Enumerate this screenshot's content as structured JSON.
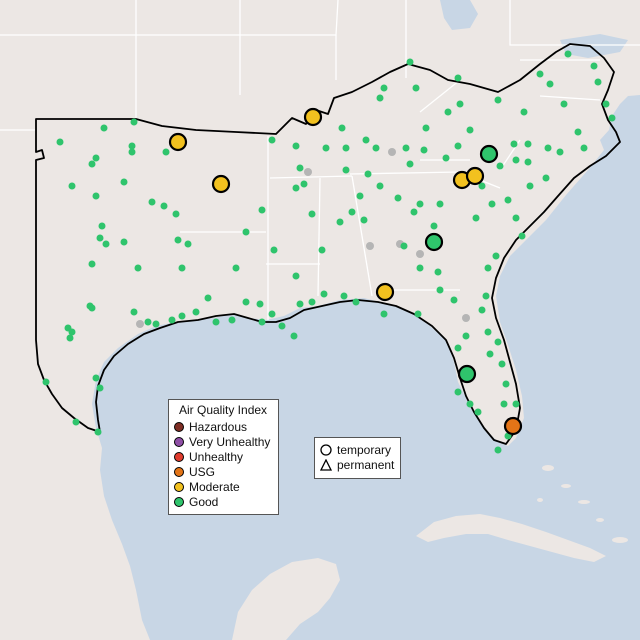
{
  "legend": {
    "title": "Air Quality Index",
    "categories": [
      {
        "label": "Hazardous",
        "color": "#7e2e24"
      },
      {
        "label": "Very Unhealthy",
        "color": "#8f4fa6"
      },
      {
        "label": "Unhealthy",
        "color": "#e03c2e"
      },
      {
        "label": "USG",
        "color": "#e37417"
      },
      {
        "label": "Moderate",
        "color": "#f2c11f"
      },
      {
        "label": "Good",
        "color": "#2fc46c"
      }
    ]
  },
  "monitor_legend": {
    "temporary": "temporary",
    "permanent": "permanent"
  },
  "colors": {
    "water": "#c8d6e5",
    "land": "#ece7e4",
    "state_border": "#ffffff",
    "region_outline": "#000000",
    "inactive_monitor": "#b5b5b5"
  }
}
